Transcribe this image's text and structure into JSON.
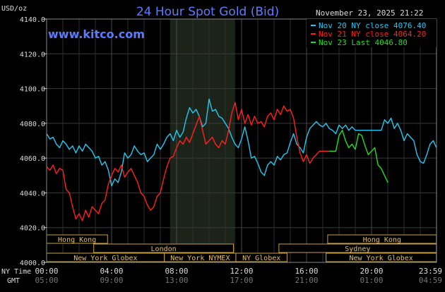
{
  "chart_data": {
    "type": "line",
    "title": "24 Hour Spot Gold (Bid)",
    "brand": "www.kitco.com",
    "timestamp": "November 23, 2025 21:22",
    "ylabel": "USD/oz",
    "ylim": [
      4000,
      4140
    ],
    "yticks": [
      "4000.0",
      "4020.0",
      "4040.0",
      "4060.0",
      "4080.0",
      "4100.0",
      "4120.0",
      "4140.0"
    ],
    "x_label_ny": "NY Time",
    "x_label_gmt": "GMT",
    "x_ticks_ny": [
      "00:00",
      "04:00",
      "08:00",
      "12:00",
      "16:00",
      "20:00",
      "23:59"
    ],
    "x_ticks_gmt": [
      "05:00",
      "09:00",
      "13:00",
      "17:00",
      "21:00",
      "01:00",
      "04:59"
    ],
    "legend": [
      {
        "label": "Nov 20 NY close 4076.40",
        "color": "#22c8f0"
      },
      {
        "label": "Nov 21 NY close 4064.20",
        "color": "#ff2020"
      },
      {
        "label": "Nov 23 Last 4046.80",
        "color": "#22dd22"
      }
    ],
    "markets": [
      {
        "name": "Hong Kong",
        "start": 0.0,
        "end": 3.75,
        "row": 0
      },
      {
        "name": "Hong Kong",
        "start": 17.3,
        "end": 23.99,
        "row": 0
      },
      {
        "name": "London",
        "start": 2.9,
        "end": 11.5,
        "row": 1
      },
      {
        "name": "Sydney",
        "start": 14.3,
        "end": 23.99,
        "row": 1
      },
      {
        "name": "New York Globex",
        "start": 0.0,
        "end": 7.25,
        "row": 2
      },
      {
        "name": "New York NYMEX",
        "start": 7.25,
        "end": 11.65,
        "row": 2
      },
      {
        "name": "NY Globex",
        "start": 11.65,
        "end": 14.8,
        "row": 2
      },
      {
        "name": "New York Globex",
        "start": 17.2,
        "end": 23.99,
        "row": 2
      }
    ],
    "highlight_hours": [
      7.6,
      11.6
    ],
    "series": [
      {
        "name": "Nov 20 NY close 4076.40",
        "color": "#22c8f0",
        "x": [
          0,
          0.2,
          0.4,
          0.6,
          0.8,
          1.0,
          1.2,
          1.4,
          1.6,
          1.8,
          2.0,
          2.2,
          2.4,
          2.6,
          2.8,
          3.0,
          3.2,
          3.4,
          3.6,
          3.8,
          4.0,
          4.2,
          4.4,
          4.6,
          4.8,
          5.0,
          5.2,
          5.4,
          5.6,
          5.8,
          6.0,
          6.2,
          6.4,
          6.6,
          6.8,
          7.0,
          7.2,
          7.4,
          7.6,
          7.8,
          8.0,
          8.2,
          8.4,
          8.6,
          8.8,
          9.0,
          9.2,
          9.4,
          9.6,
          9.8,
          10.0,
          10.2,
          10.4,
          10.6,
          10.8,
          11.0,
          11.2,
          11.4,
          11.6,
          11.8,
          12.0,
          12.2,
          12.4,
          12.6,
          12.8,
          13.0,
          13.2,
          13.4,
          13.6,
          13.8,
          14.0,
          14.2,
          14.4,
          14.6,
          14.8,
          15.0,
          15.2,
          15.4,
          15.6,
          15.8,
          16.0,
          16.2,
          16.4,
          16.6,
          16.8,
          17.0,
          17.2,
          17.4,
          17.6,
          17.8,
          18.0,
          18.2,
          18.4,
          18.6,
          18.8,
          19.0,
          19.2,
          19.4,
          19.6,
          19.8,
          20.0,
          20.2,
          20.4,
          20.6,
          20.8,
          21.0,
          21.2,
          21.4,
          21.6,
          21.8,
          22.0,
          22.2,
          22.4,
          22.6,
          22.8,
          23.0,
          23.2,
          23.4,
          23.6,
          23.8,
          23.99
        ],
        "values": [
          4074,
          4071,
          4072,
          4068,
          4066,
          4070,
          4068,
          4065,
          4067,
          4063,
          4067,
          4064,
          4068,
          4066,
          4064,
          4060,
          4061,
          4056,
          4058,
          4053,
          4044,
          4048,
          4046,
          4052,
          4063,
          4060,
          4062,
          4067,
          4064,
          4062,
          4063,
          4058,
          4060,
          4062,
          4068,
          4065,
          4068,
          4072,
          4074,
          4070,
          4076,
          4072,
          4075,
          4083,
          4089,
          4086,
          4088,
          4084,
          4078,
          4080,
          4094,
          4087,
          4088,
          4084,
          4083,
          4080,
          4077,
          4072,
          4068,
          4066,
          4071,
          4078,
          4070,
          4060,
          4061,
          4057,
          4052,
          4050,
          4056,
          4058,
          4056,
          4061,
          4059,
          4062,
          4063,
          4069,
          4074,
          4068,
          4066,
          4063,
          4072,
          4077,
          4079,
          4081,
          4079,
          4078,
          4080,
          4077,
          4076,
          4074,
          4079,
          4077,
          4079,
          4076,
          4078,
          4076,
          4076,
          4076,
          4076,
          4076,
          4076,
          4076,
          4076,
          4076,
          4082,
          4080,
          4083,
          4077,
          4080,
          4076,
          4070,
          4074,
          4072,
          4070,
          4062,
          4058,
          4057,
          4062,
          4068,
          4070,
          4066
        ]
      },
      {
        "name": "Nov 21 NY close 4064.20",
        "color": "#ff2020",
        "x": [
          0,
          0.2,
          0.4,
          0.6,
          0.8,
          1.0,
          1.2,
          1.4,
          1.6,
          1.8,
          2.0,
          2.2,
          2.4,
          2.6,
          2.8,
          3.0,
          3.2,
          3.4,
          3.6,
          3.8,
          4.0,
          4.2,
          4.4,
          4.6,
          4.8,
          5.0,
          5.2,
          5.4,
          5.6,
          5.8,
          6.0,
          6.2,
          6.4,
          6.6,
          6.8,
          7.0,
          7.2,
          7.4,
          7.6,
          7.8,
          8.0,
          8.2,
          8.4,
          8.6,
          8.8,
          9.0,
          9.2,
          9.4,
          9.6,
          9.8,
          10.0,
          10.2,
          10.4,
          10.6,
          10.8,
          11.0,
          11.2,
          11.4,
          11.6,
          11.8,
          12.0,
          12.2,
          12.4,
          12.6,
          12.8,
          13.0,
          13.2,
          13.4,
          13.6,
          13.8,
          14.0,
          14.2,
          14.4,
          14.6,
          14.8,
          15.0,
          15.2,
          15.4,
          15.6,
          15.8,
          16.0,
          16.2,
          16.4,
          16.6,
          16.8,
          17.0,
          17.2,
          17.4
        ],
        "values": [
          4055,
          4053,
          4056,
          4051,
          4054,
          4053,
          4042,
          4040,
          4032,
          4025,
          4028,
          4024,
          4030,
          4026,
          4032,
          4030,
          4028,
          4034,
          4036,
          4045,
          4050,
          4054,
          4052,
          4056,
          4049,
          4052,
          4054,
          4050,
          4046,
          4040,
          4038,
          4033,
          4030,
          4032,
          4038,
          4040,
          4048,
          4055,
          4060,
          4061,
          4066,
          4070,
          4068,
          4072,
          4069,
          4074,
          4079,
          4084,
          4076,
          4068,
          4070,
          4072,
          4068,
          4066,
          4070,
          4068,
          4076,
          4086,
          4092,
          4082,
          4088,
          4080,
          4085,
          4079,
          4084,
          4080,
          4081,
          4078,
          4084,
          4086,
          4082,
          4088,
          4085,
          4090,
          4087,
          4088,
          4083,
          4072,
          4063,
          4058,
          4062,
          4057,
          4060,
          4062,
          4064,
          4064,
          4064,
          4064
        ]
      },
      {
        "name": "Nov 23 Last 4046.80",
        "color": "#22dd22",
        "x": [
          17.4,
          17.6,
          17.8,
          18.0,
          18.2,
          18.4,
          18.6,
          18.8,
          19.0,
          19.2,
          19.4,
          19.6,
          19.8,
          20.0,
          20.2,
          20.4,
          20.6,
          20.8,
          21.0
        ],
        "values": [
          4064,
          4064,
          4064,
          4073,
          4076,
          4070,
          4066,
          4068,
          4065,
          4074,
          4073,
          4067,
          4062,
          4064,
          4066,
          4056,
          4054,
          4050,
          4046
        ]
      }
    ]
  }
}
